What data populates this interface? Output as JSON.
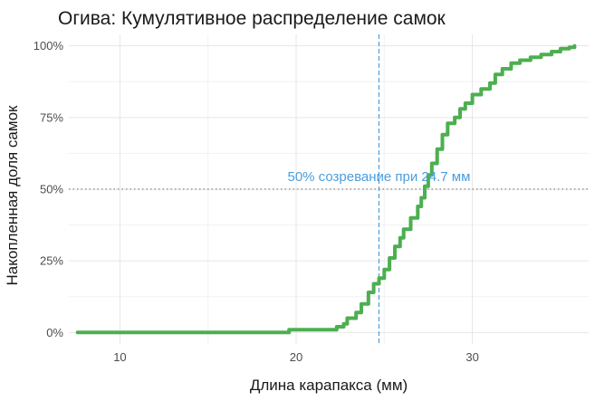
{
  "chart_data": {
    "type": "line",
    "title": "Огива: Кумулятивное распределение самок",
    "xlabel": "Длина карапакса (мм)",
    "ylabel": "Накопленная доля самок",
    "xlim": [
      7.1,
      36.6
    ],
    "ylim": [
      -0.04,
      1.04
    ],
    "x_ticks": [
      10,
      20,
      30
    ],
    "x_tick_labels": [
      "10",
      "20",
      "30"
    ],
    "y_ticks": [
      0,
      0.25,
      0.5,
      0.75,
      1.0
    ],
    "y_tick_labels": [
      "0%",
      "25%",
      "50%",
      "75%",
      "100%"
    ],
    "grid": true,
    "series": [
      {
        "color": "#4caf50",
        "x": [
          7.6,
          19.5,
          19.6,
          22.1,
          22.3,
          22.7,
          22.9,
          23.4,
          23.7,
          24.1,
          24.4,
          24.7,
          25.0,
          25.3,
          25.6,
          25.9,
          26.1,
          26.5,
          26.9,
          27.1,
          27.3,
          27.5,
          27.7,
          28.0,
          28.3,
          28.6,
          29.0,
          29.3,
          29.6,
          30.0,
          30.5,
          31.0,
          31.3,
          31.7,
          32.2,
          32.7,
          33.3,
          33.9,
          34.5,
          35.0,
          35.5,
          35.8
        ],
        "y": [
          0.0,
          0.0,
          0.01,
          0.01,
          0.02,
          0.03,
          0.05,
          0.07,
          0.1,
          0.14,
          0.17,
          0.19,
          0.22,
          0.26,
          0.3,
          0.33,
          0.36,
          0.4,
          0.44,
          0.47,
          0.51,
          0.55,
          0.59,
          0.64,
          0.69,
          0.73,
          0.75,
          0.78,
          0.8,
          0.83,
          0.85,
          0.87,
          0.9,
          0.92,
          0.94,
          0.95,
          0.96,
          0.97,
          0.98,
          0.99,
          0.995,
          1.0
        ]
      }
    ],
    "reference_lines": [
      {
        "axis": "x",
        "value": 24.7,
        "color": "#4a9ede",
        "style": "dashed"
      },
      {
        "axis": "y",
        "value": 0.5,
        "color": "#808080",
        "style": "dotted"
      }
    ],
    "annotations": [
      {
        "text": "50% созревание при 24.7 мм",
        "x": 24.7,
        "y": 0.545,
        "color": "#4a9ede"
      }
    ]
  }
}
